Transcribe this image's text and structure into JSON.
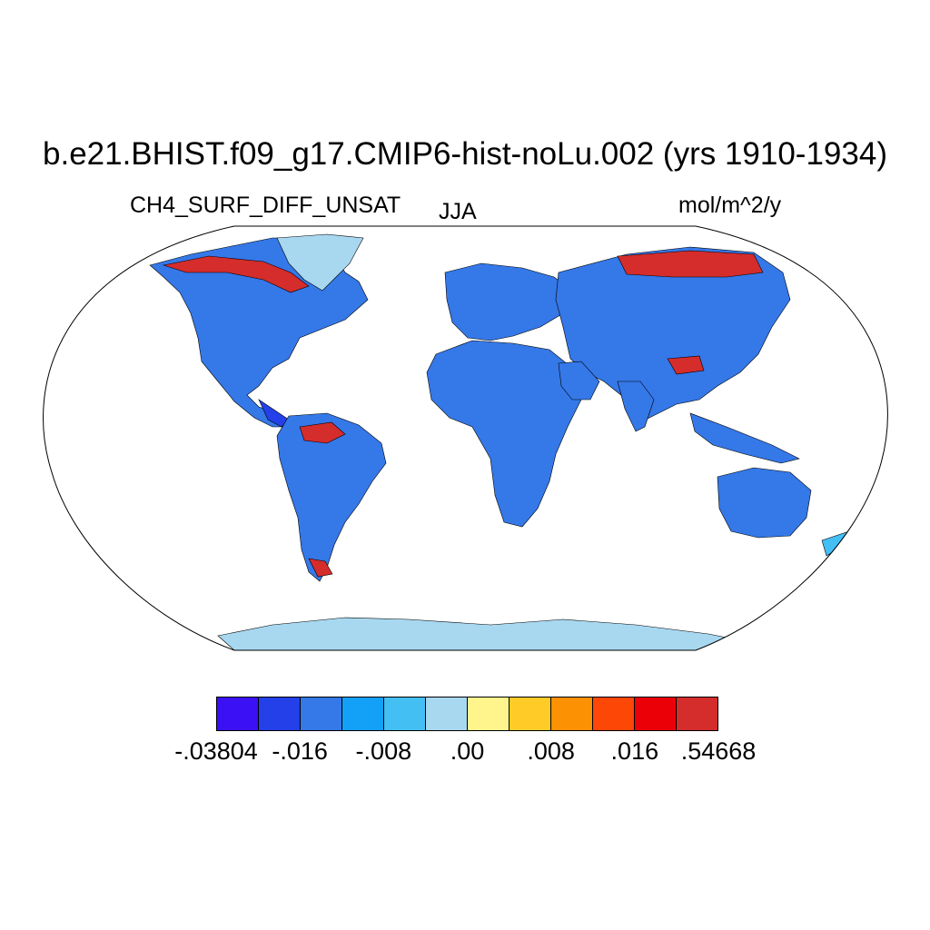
{
  "title": "b.e21.BHIST.f09_g17.CMIP6-hist-noLu.002 (yrs 1910-1934)",
  "variable": "CH4_SURF_DIFF_UNSAT",
  "season": "JJA",
  "units": "mol/m^2/y",
  "projection": "Robinson",
  "colorbar": {
    "colors": [
      "#3b10f5",
      "#2440e8",
      "#3578e8",
      "#13a0f7",
      "#43bff4",
      "#a8d8f0",
      "#fff58c",
      "#fecb27",
      "#fc9103",
      "#fd4707",
      "#ec0008",
      "#d42d2c"
    ],
    "tick_labels": [
      "-.03804",
      "-.016",
      "-.008",
      ".00",
      ".008",
      ".016",
      ".54668"
    ]
  },
  "land_palette": {
    "ocean": "#ffffff",
    "base": "#3578e8",
    "dark": "#2440e8",
    "light": "#43bff4",
    "pale": "#a8d8f0",
    "hot": "#d42d2c"
  }
}
